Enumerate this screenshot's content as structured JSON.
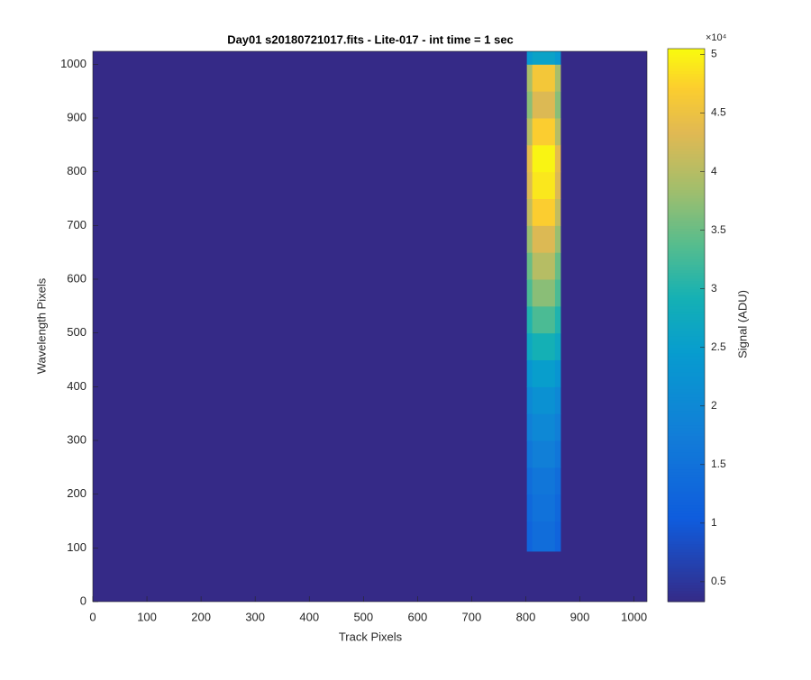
{
  "chart_data": {
    "type": "image",
    "title": "Day01  s20180721017.fits - Lite-017 - int time = 1 sec",
    "xlabel": "Track Pixels",
    "ylabel": "Wavelength Pixels",
    "xlim": [
      0,
      1024
    ],
    "ylim": [
      0,
      1024
    ],
    "xticks": [
      0,
      100,
      200,
      300,
      400,
      500,
      600,
      700,
      800,
      900,
      1000
    ],
    "yticks": [
      0,
      100,
      200,
      300,
      400,
      500,
      600,
      700,
      800,
      900,
      1000
    ],
    "colormap": "parula",
    "background_value": 3300,
    "stripe": {
      "x_edges": [
        802,
        812,
        854,
        864
      ],
      "y_edges": [
        94,
        150,
        200,
        250,
        300,
        350,
        400,
        450,
        500,
        550,
        600,
        650,
        700,
        750,
        800,
        850,
        900,
        950,
        1000,
        1024
      ],
      "values": [
        [
          12000,
          14000,
          12000
        ],
        [
          13000,
          15000,
          13000
        ],
        [
          14000,
          16000,
          14000
        ],
        [
          16000,
          18000,
          16000
        ],
        [
          18000,
          20000,
          18000
        ],
        [
          20000,
          22000,
          20000
        ],
        [
          23000,
          25000,
          23000
        ],
        [
          27000,
          29000,
          27000
        ],
        [
          30000,
          33000,
          30000
        ],
        [
          33000,
          37000,
          33000
        ],
        [
          35000,
          40000,
          35000
        ],
        [
          38000,
          43000,
          38000
        ],
        [
          41000,
          47000,
          41000
        ],
        [
          43000,
          49000,
          43000
        ],
        [
          44000,
          50000,
          44000
        ],
        [
          40000,
          47000,
          40000
        ],
        [
          37000,
          43000,
          37000
        ],
        [
          39000,
          46000,
          39000
        ],
        [
          24000,
          26000,
          24000
        ]
      ]
    },
    "colorbar": {
      "label": "Signal (ADU)",
      "exponent_label": "×10⁴",
      "clim": [
        3300,
        50500
      ],
      "ticks": [
        {
          "value": 5000,
          "label": "0.5"
        },
        {
          "value": 10000,
          "label": "1"
        },
        {
          "value": 15000,
          "label": "1.5"
        },
        {
          "value": 20000,
          "label": "2"
        },
        {
          "value": 25000,
          "label": "2.5"
        },
        {
          "value": 30000,
          "label": "3"
        },
        {
          "value": 35000,
          "label": "3.5"
        },
        {
          "value": 40000,
          "label": "4"
        },
        {
          "value": 45000,
          "label": "4.5"
        },
        {
          "value": 50000,
          "label": "5"
        }
      ]
    }
  }
}
